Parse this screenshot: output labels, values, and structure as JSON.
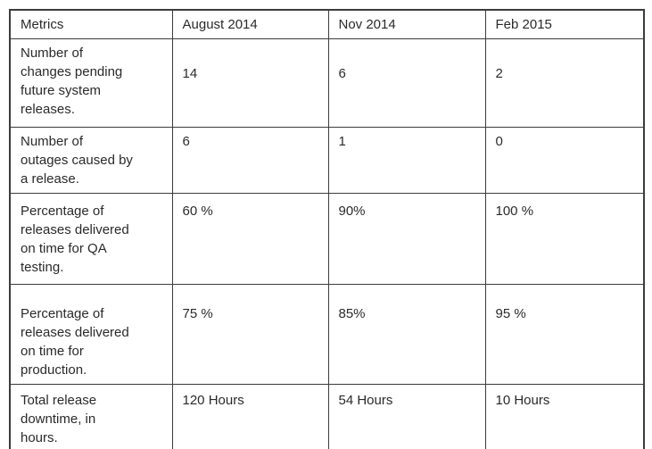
{
  "style": {
    "border_color": "#3c3c3c",
    "text_color": "#2a2a2a",
    "background_color": "#ffffff"
  },
  "chart_data": {
    "type": "table",
    "title": "",
    "columns": [
      "Metrics",
      "August 2014",
      "Nov 2014",
      "Feb 2015"
    ],
    "rows": [
      {
        "metric": "Number of\nchanges pending\nfuture system\nreleases.",
        "values": [
          "14",
          "6",
          "2"
        ]
      },
      {
        "metric": "Number of\noutages caused by\na release.",
        "values": [
          "6",
          "1",
          "0"
        ]
      },
      {
        "metric": "Percentage of\nreleases delivered\non time for QA\ntesting.",
        "values": [
          "60 %",
          "90%",
          "100 %"
        ]
      },
      {
        "metric": "Percentage of\nreleases delivered\non time for\nproduction.",
        "values": [
          "75 %",
          "85%",
          "95 %"
        ]
      },
      {
        "metric": "Total release\ndowntime, in\nhours.",
        "values": [
          "120 Hours",
          "54 Hours",
          "10 Hours"
        ]
      }
    ]
  }
}
